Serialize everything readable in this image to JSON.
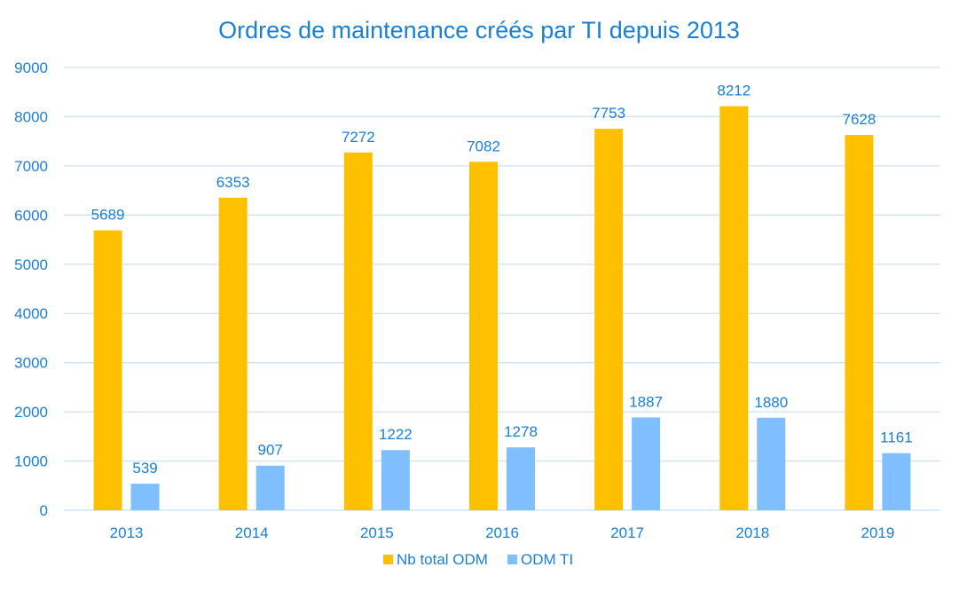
{
  "chart_data": {
    "type": "bar",
    "title": "Ordres de maintenance créés par TI depuis 2013",
    "xlabel": "",
    "ylabel": "",
    "categories": [
      "2013",
      "2014",
      "2015",
      "2016",
      "2017",
      "2018",
      "2019"
    ],
    "series": [
      {
        "name": "Nb total ODM",
        "color": "#ffc000",
        "values": [
          5689,
          6353,
          7272,
          7082,
          7753,
          8212,
          7628
        ]
      },
      {
        "name": "ODM TI",
        "color": "#7fbfff",
        "values": [
          539,
          907,
          1222,
          1278,
          1887,
          1880,
          1161
        ]
      }
    ],
    "ylim": [
      0,
      9000
    ],
    "yticks": [
      "0",
      "1000",
      "2000",
      "3000",
      "4000",
      "5000",
      "6000",
      "7000",
      "8000",
      "9000"
    ],
    "grid": true,
    "legend_position": "bottom",
    "data_labels": true
  }
}
